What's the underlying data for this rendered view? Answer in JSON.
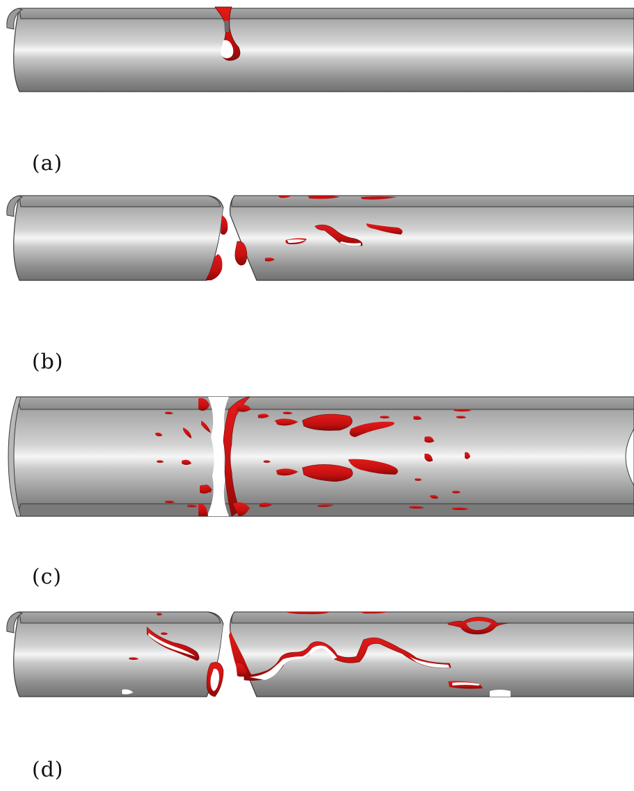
{
  "figure": {
    "panels": [
      {
        "id": "a",
        "label": "(a)"
      },
      {
        "id": "b",
        "label": "(b)"
      },
      {
        "id": "c",
        "label": "(c)"
      },
      {
        "id": "d",
        "label": "(d)"
      }
    ]
  },
  "colors": {
    "pipe_light": "#f4f4f4",
    "pipe_mid": "#9a9a9a",
    "pipe_dark": "#6f6f6f",
    "pipe_edge": "#3a3a3a",
    "damage_red": "#d01414",
    "damage_dark": "#8a0a0a",
    "void_white": "#ffffff"
  }
}
